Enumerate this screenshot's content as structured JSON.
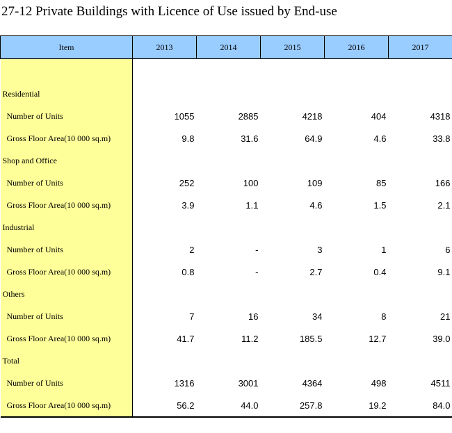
{
  "title": "27-12  Private Buildings with Licence of Use issued by End-use",
  "table": {
    "headers": [
      "Item",
      "2013",
      "2014",
      "2015",
      "2016",
      "2017"
    ],
    "rows": [
      {
        "type": "category",
        "label": "Residential"
      },
      {
        "type": "sub",
        "label": "Number of Units",
        "values": [
          "1055",
          "2885",
          "4218",
          "404",
          "4318"
        ]
      },
      {
        "type": "sub",
        "label": "Gross Floor Area(10 000 sq.m)",
        "values": [
          "9.8",
          "31.6",
          "64.9",
          "4.6",
          "33.8"
        ]
      },
      {
        "type": "category",
        "label": "Shop and Office"
      },
      {
        "type": "sub",
        "label": "Number of Units",
        "values": [
          "252",
          "100",
          "109",
          "85",
          "166"
        ]
      },
      {
        "type": "sub",
        "label": "Gross Floor Area(10 000 sq.m)",
        "values": [
          "3.9",
          "1.1",
          "4.6",
          "1.5",
          "2.1"
        ]
      },
      {
        "type": "category",
        "label": "Industrial"
      },
      {
        "type": "sub",
        "label": "Number of Units",
        "values": [
          "2",
          "-",
          "3",
          "1",
          "6"
        ]
      },
      {
        "type": "sub",
        "label": "Gross Floor Area(10 000 sq.m)",
        "values": [
          "0.8",
          "-",
          "2.7",
          "0.4",
          "9.1"
        ]
      },
      {
        "type": "category",
        "label": "Others"
      },
      {
        "type": "sub",
        "label": "Number of Units",
        "values": [
          "7",
          "16",
          "34",
          "8",
          "21"
        ]
      },
      {
        "type": "sub",
        "label": "Gross Floor Area(10 000 sq.m)",
        "values": [
          "41.7",
          "11.2",
          "185.5",
          "12.7",
          "39.0"
        ]
      },
      {
        "type": "category",
        "label": "Total"
      },
      {
        "type": "sub",
        "label": "Number of Units",
        "values": [
          "1316",
          "3001",
          "4364",
          "498",
          "4511"
        ]
      },
      {
        "type": "sub",
        "label": "Gross Floor Area(10 000 sq.m)",
        "values": [
          "56.2",
          "44.0",
          "257.8",
          "19.2",
          "84.0"
        ]
      }
    ]
  },
  "colors": {
    "header_bg": "#99ccff",
    "label_bg": "#ffff99"
  }
}
